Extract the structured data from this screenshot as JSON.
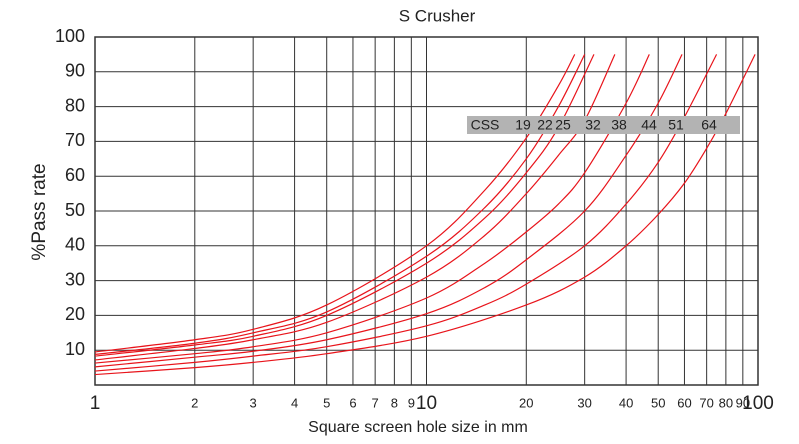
{
  "chart_data": {
    "type": "line",
    "title": "S Crusher",
    "x_label": "Square screen hole size in mm",
    "y_label": "%Pass rate",
    "x_log": true,
    "xlim": [
      1,
      100
    ],
    "xticks": [
      1,
      2,
      3,
      4,
      5,
      6,
      7,
      8,
      9,
      10,
      20,
      30,
      40,
      50,
      60,
      70,
      80,
      90,
      100
    ],
    "ylim": [
      0,
      100
    ],
    "yticks": [
      10,
      20,
      30,
      40,
      50,
      60,
      70,
      80,
      90,
      100
    ],
    "grid": true,
    "legend_title": "CSS",
    "series": [
      {
        "name": "19",
        "color": "#e8141b",
        "x": [
          1,
          2,
          3,
          5,
          10,
          15,
          20,
          25,
          28
        ],
        "values": [
          9.5,
          13,
          16,
          23,
          40,
          56,
          71,
          86,
          95
        ]
      },
      {
        "name": "22",
        "color": "#e8141b",
        "x": [
          1,
          2,
          3,
          5,
          10,
          15,
          20,
          25,
          30
        ],
        "values": [
          8.8,
          12,
          15,
          21,
          37,
          51,
          65,
          80,
          95
        ]
      },
      {
        "name": "25",
        "color": "#e8141b",
        "x": [
          1,
          2,
          3,
          5,
          10,
          15,
          20,
          25,
          32
        ],
        "values": [
          8.3,
          11.5,
          14,
          20,
          35,
          48,
          61,
          74,
          95
        ]
      },
      {
        "name": "32",
        "color": "#e8141b",
        "x": [
          1,
          2,
          3,
          5,
          10,
          15,
          20,
          25,
          30,
          37
        ],
        "values": [
          7.2,
          10.5,
          13,
          18,
          31,
          43,
          55,
          66,
          76,
          95
        ]
      },
      {
        "name": "38",
        "color": "#e8141b",
        "x": [
          1,
          2,
          3,
          5,
          10,
          15,
          20,
          25,
          30,
          40,
          47
        ],
        "values": [
          6.3,
          9,
          11,
          15,
          25,
          35,
          44,
          52,
          61,
          81,
          95
        ]
      },
      {
        "name": "44",
        "color": "#e8141b",
        "x": [
          1,
          2,
          3,
          5,
          10,
          15,
          20,
          30,
          40,
          50,
          59
        ],
        "values": [
          5.2,
          8,
          9.7,
          13,
          20.5,
          28,
          36,
          50,
          66,
          81,
          95
        ]
      },
      {
        "name": "51",
        "color": "#e8141b",
        "x": [
          1,
          2,
          3,
          5,
          10,
          15,
          20,
          30,
          40,
          50,
          60,
          75
        ],
        "values": [
          4,
          6.5,
          8.3,
          11,
          17,
          23,
          29,
          40,
          52,
          64,
          77,
          95
        ]
      },
      {
        "name": "64",
        "color": "#e8141b",
        "x": [
          1,
          2,
          3,
          5,
          10,
          20,
          30,
          40,
          50,
          60,
          70,
          80,
          98
        ],
        "values": [
          3,
          5,
          6.5,
          9,
          14,
          23,
          31,
          40,
          49,
          58,
          68,
          78,
          95
        ]
      }
    ]
  }
}
